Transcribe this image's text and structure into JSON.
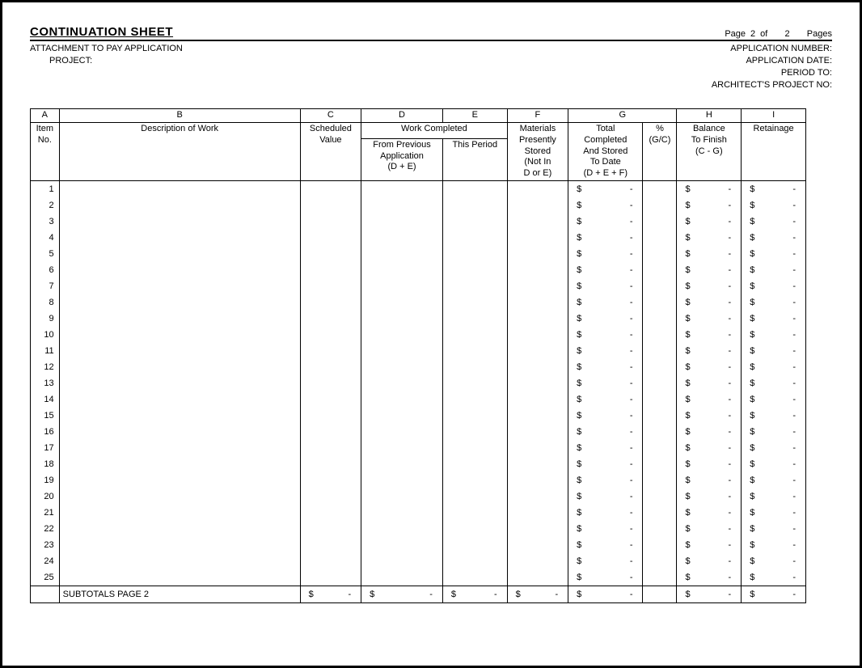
{
  "header": {
    "title": "CONTINUATION SHEET",
    "page_label": "Page",
    "page_current": "2",
    "page_of": "of",
    "page_total": "2",
    "pages_word": "Pages",
    "attachment": "ATTACHMENT TO PAY APPLICATION",
    "project_label": "PROJECT:",
    "app_number": "APPLICATION NUMBER:",
    "app_date": "APPLICATION DATE:",
    "period_to": "PERIOD TO:",
    "architect_no": "ARCHITECT'S PROJECT NO:"
  },
  "table": {
    "letters": [
      "A",
      "B",
      "C",
      "D",
      "E",
      "F",
      "G",
      "",
      "H",
      "I"
    ],
    "headers": {
      "item_no": "Item\nNo.",
      "desc": "Description of Work",
      "sched": "Scheduled\nValue",
      "work_completed": "Work Completed",
      "from_prev": "From Previous\nApplication\n(D + E)",
      "this_period": "This Period",
      "materials": "Materials\nPresently\nStored\n(Not In\nD or E)",
      "total": "Total\nCompleted\nAnd Stored\nTo Date\n(D + E + F)",
      "pct": "%\n(G/C)",
      "balance": "Balance\nTo Finish\n(C - G)",
      "retainage": "Retainage"
    },
    "row_count": 25,
    "money_symbol": "$",
    "money_value": "-",
    "subtotal_label": "SUBTOTALS PAGE 2"
  },
  "style": {
    "border_color": "#000000",
    "background": "#ffffff",
    "font_family": "Arial",
    "title_fontsize": 15,
    "body_fontsize": 11
  }
}
